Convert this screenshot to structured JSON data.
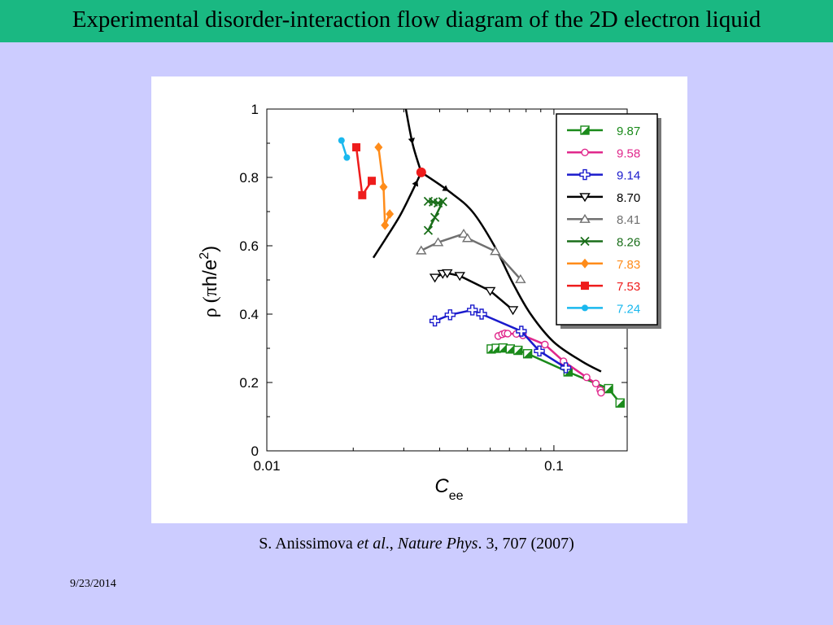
{
  "slide": {
    "title": "Experimental disorder-interaction flow diagram of the 2D electron liquid",
    "citation_author": "S. Anissimova ",
    "citation_etal": "et al",
    "citation_sep": "., ",
    "citation_journal": "Nature Phys",
    "citation_rest": ". 3, 707 (2007)",
    "date": "9/23/2014"
  },
  "chart_data": {
    "type": "scatter",
    "xscale": "log",
    "xlim": [
      0.01,
      0.18
    ],
    "ylim": [
      0,
      1
    ],
    "xticks": [
      {
        "v": 0.01,
        "label": "0.01"
      },
      {
        "v": 0.1,
        "label": "0.1"
      }
    ],
    "yticks": [
      {
        "v": 0,
        "label": "0"
      },
      {
        "v": 0.2,
        "label": "0.2"
      },
      {
        "v": 0.4,
        "label": "0.4"
      },
      {
        "v": 0.6,
        "label": "0.6"
      },
      {
        "v": 0.8,
        "label": "0.8"
      },
      {
        "v": 1,
        "label": "1"
      }
    ],
    "xlabel_main": "C",
    "xlabel_sub": "ee",
    "ylabel_rho": "ρ (",
    "ylabel_pi": "π",
    "ylabel_rest": "h/e",
    "ylabel_sup": "2",
    "ylabel_close": ")",
    "grid": false,
    "legend_position": "top-right",
    "series": [
      {
        "name": "9.87",
        "color": "#1a8a1a",
        "marker": "half-square",
        "points": [
          [
            0.0605,
            0.298
          ],
          [
            0.063,
            0.3
          ],
          [
            0.0665,
            0.301
          ],
          [
            0.0705,
            0.298
          ],
          [
            0.075,
            0.294
          ],
          [
            0.081,
            0.284
          ],
          [
            0.112,
            0.231
          ],
          [
            0.155,
            0.182
          ],
          [
            0.17,
            0.14
          ]
        ]
      },
      {
        "name": "9.58",
        "color": "#e0288c",
        "marker": "open-circle",
        "points": [
          [
            0.064,
            0.336
          ],
          [
            0.066,
            0.341
          ],
          [
            0.0675,
            0.344
          ],
          [
            0.069,
            0.343
          ],
          [
            0.074,
            0.342
          ],
          [
            0.078,
            0.338
          ],
          [
            0.093,
            0.311
          ],
          [
            0.108,
            0.262
          ],
          [
            0.13,
            0.215
          ],
          [
            0.14,
            0.197
          ],
          [
            0.145,
            0.178
          ],
          [
            0.146,
            0.17
          ]
        ]
      },
      {
        "name": "9.14",
        "color": "#1a1acc",
        "marker": "open-plus",
        "points": [
          [
            0.0385,
            0.38
          ],
          [
            0.0435,
            0.398
          ],
          [
            0.052,
            0.412
          ],
          [
            0.056,
            0.4
          ],
          [
            0.077,
            0.35
          ],
          [
            0.089,
            0.292
          ],
          [
            0.11,
            0.243
          ]
        ]
      },
      {
        "name": "8.70",
        "color": "#000000",
        "marker": "open-triangle-down",
        "points": [
          [
            0.0385,
            0.507
          ],
          [
            0.041,
            0.518
          ],
          [
            0.0425,
            0.52
          ],
          [
            0.047,
            0.512
          ],
          [
            0.06,
            0.468
          ],
          [
            0.072,
            0.412
          ]
        ]
      },
      {
        "name": "8.41",
        "color": "#707070",
        "marker": "open-triangle-up",
        "points": [
          [
            0.0345,
            0.586
          ],
          [
            0.0395,
            0.61
          ],
          [
            0.0485,
            0.635
          ],
          [
            0.05,
            0.622
          ],
          [
            0.0625,
            0.584
          ],
          [
            0.0765,
            0.502
          ]
        ]
      },
      {
        "name": "8.26",
        "color": "#1a6e1a",
        "marker": "x",
        "points": [
          [
            0.0365,
            0.73
          ],
          [
            0.038,
            0.728
          ],
          [
            0.0395,
            0.725
          ],
          [
            0.041,
            0.729
          ],
          [
            0.0385,
            0.683
          ],
          [
            0.0365,
            0.645
          ]
        ]
      },
      {
        "name": "7.83",
        "color": "#ff8c1a",
        "marker": "diamond",
        "points": [
          [
            0.0245,
            0.888
          ],
          [
            0.0255,
            0.772
          ],
          [
            0.0258,
            0.66
          ],
          [
            0.0268,
            0.693
          ]
        ]
      },
      {
        "name": "7.53",
        "color": "#ee1c1c",
        "marker": "square",
        "points": [
          [
            0.0205,
            0.888
          ],
          [
            0.0215,
            0.748
          ],
          [
            0.0232,
            0.79
          ]
        ]
      },
      {
        "name": "7.24",
        "color": "#1ab8ee",
        "marker": "circle",
        "points": [
          [
            0.0182,
            0.908
          ],
          [
            0.019,
            0.858
          ]
        ]
      }
    ],
    "legend_colors": [
      "#1a8a1a",
      "#e0288c",
      "#1a1acc",
      "#000000",
      "#707070",
      "#1a6e1a",
      "#ff8c1a",
      "#ee1c1c",
      "#1ab8ee"
    ],
    "fixed_point": {
      "x": 0.0345,
      "y": 0.815,
      "color": "#ee1c1c"
    },
    "flow_curves": [
      {
        "points": [
          [
            0.0235,
            0.565
          ],
          [
            0.026,
            0.622
          ],
          [
            0.029,
            0.686
          ],
          [
            0.0315,
            0.745
          ],
          [
            0.0335,
            0.792
          ],
          [
            0.0345,
            0.815
          ]
        ]
      },
      {
        "points": [
          [
            0.0305,
            1.0
          ],
          [
            0.0322,
            0.898
          ],
          [
            0.0345,
            0.815
          ]
        ]
      },
      {
        "points": [
          [
            0.0345,
            0.815
          ],
          [
            0.043,
            0.76
          ],
          [
            0.052,
            0.7
          ],
          [
            0.062,
            0.6
          ],
          [
            0.072,
            0.49
          ],
          [
            0.083,
            0.4
          ],
          [
            0.1,
            0.318
          ],
          [
            0.125,
            0.262
          ],
          [
            0.146,
            0.232
          ]
        ]
      }
    ]
  }
}
